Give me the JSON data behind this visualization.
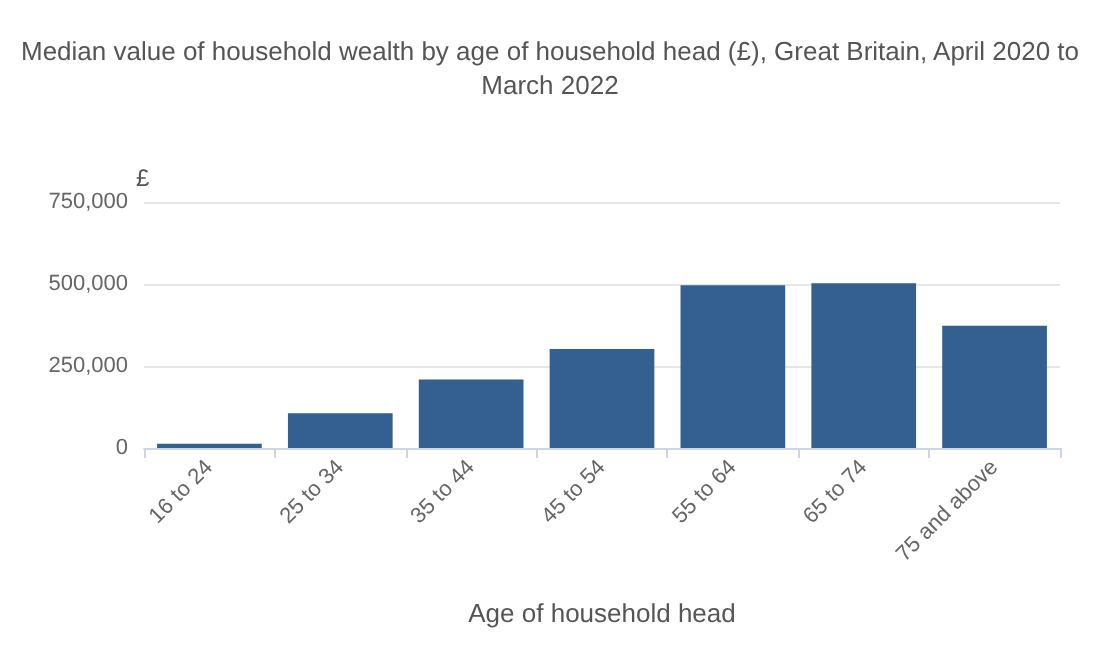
{
  "chart_data": {
    "type": "bar",
    "title": "Median value of household wealth by age of household head (£), Great Britain, April 2020 to\nMarch 2022",
    "xlabel": "Age of household head",
    "ylabel": "£",
    "categories": [
      "16 to 24",
      "25 to 34",
      "35 to 44",
      "45 to 54",
      "55 to 64",
      "65 to 74",
      "75 and above"
    ],
    "values": [
      13000,
      106000,
      209000,
      302000,
      496000,
      502000,
      373000
    ],
    "color": "#335f91",
    "ylim": [
      0,
      750000
    ],
    "yticks": [
      {
        "value": 0,
        "label": "0"
      },
      {
        "value": 250000,
        "label": "250,000"
      },
      {
        "value": 500000,
        "label": "500,000"
      },
      {
        "value": 750000,
        "label": "750,000"
      }
    ],
    "grid": "y"
  }
}
